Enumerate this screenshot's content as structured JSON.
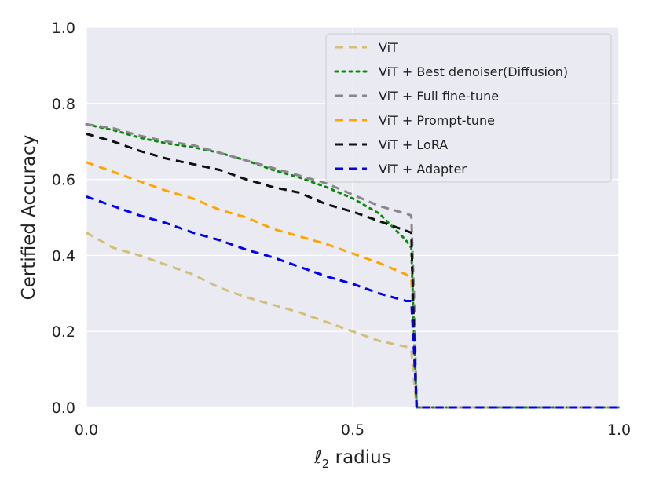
{
  "chart_data": {
    "type": "line",
    "title": "",
    "xlabel_prefix": "ℓ",
    "xlabel_sub": "2",
    "xlabel_suffix": " radius",
    "ylabel": "Certified Accuracy",
    "xlim": [
      0.0,
      1.0
    ],
    "ylim": [
      0.0,
      1.0
    ],
    "xticks": [
      0.0,
      0.5,
      1.0
    ],
    "xtick_labels": [
      "0.0",
      "0.5",
      "1.0"
    ],
    "yticks": [
      0.0,
      0.2,
      0.4,
      0.6,
      0.8,
      1.0
    ],
    "ytick_labels": [
      "0.0",
      "0.2",
      "0.4",
      "0.6",
      "0.8",
      "1.0"
    ],
    "grid": true,
    "legend_position": "top-right",
    "series": [
      {
        "name": "ViT",
        "color": "#d4bf7a",
        "dash": "dashed",
        "x": [
          0.0,
          0.05,
          0.1,
          0.15,
          0.2,
          0.25,
          0.3,
          0.35,
          0.4,
          0.45,
          0.5,
          0.55,
          0.6,
          0.61,
          0.615,
          0.62,
          0.63,
          0.7,
          0.8,
          0.9,
          1.0
        ],
        "y": [
          0.46,
          0.42,
          0.4,
          0.375,
          0.35,
          0.315,
          0.29,
          0.27,
          0.25,
          0.225,
          0.2,
          0.175,
          0.16,
          0.15,
          0.07,
          0.0,
          0.0,
          0.0,
          0.0,
          0.0,
          0.0
        ]
      },
      {
        "name": "ViT + Best denoiser(Diffusion)",
        "color": "#0a8a0a",
        "dash": "dotted",
        "x": [
          0.0,
          0.05,
          0.1,
          0.15,
          0.2,
          0.25,
          0.3,
          0.35,
          0.4,
          0.45,
          0.5,
          0.55,
          0.6,
          0.61,
          0.615,
          0.62,
          0.63,
          0.7,
          0.8,
          0.9,
          1.0
        ],
        "y": [
          0.745,
          0.73,
          0.71,
          0.695,
          0.685,
          0.67,
          0.65,
          0.625,
          0.605,
          0.58,
          0.55,
          0.51,
          0.44,
          0.42,
          0.2,
          0.0,
          0.0,
          0.0,
          0.0,
          0.0,
          0.0
        ]
      },
      {
        "name": "ViT + Full fine-tune",
        "color": "#888888",
        "dash": "dashed",
        "x": [
          0.0,
          0.05,
          0.1,
          0.15,
          0.2,
          0.25,
          0.3,
          0.35,
          0.4,
          0.45,
          0.5,
          0.55,
          0.6,
          0.61,
          0.615,
          0.62,
          0.63,
          0.7,
          0.8,
          0.9,
          1.0
        ],
        "y": [
          0.745,
          0.735,
          0.715,
          0.7,
          0.69,
          0.67,
          0.65,
          0.63,
          0.61,
          0.59,
          0.56,
          0.53,
          0.51,
          0.505,
          0.3,
          0.0,
          0.0,
          0.0,
          0.0,
          0.0,
          0.0
        ]
      },
      {
        "name": "ViT + Prompt-tune",
        "color": "#ffa500",
        "dash": "dashed",
        "x": [
          0.0,
          0.05,
          0.1,
          0.15,
          0.2,
          0.25,
          0.3,
          0.35,
          0.4,
          0.45,
          0.5,
          0.55,
          0.6,
          0.61,
          0.615,
          0.62,
          0.63,
          0.7,
          0.8,
          0.9,
          1.0
        ],
        "y": [
          0.645,
          0.62,
          0.595,
          0.57,
          0.55,
          0.52,
          0.5,
          0.47,
          0.45,
          0.43,
          0.405,
          0.38,
          0.35,
          0.34,
          0.18,
          0.0,
          0.0,
          0.0,
          0.0,
          0.0,
          0.0
        ]
      },
      {
        "name": "ViT + LoRA",
        "color": "#111111",
        "dash": "dashed",
        "x": [
          0.0,
          0.05,
          0.1,
          0.15,
          0.2,
          0.25,
          0.3,
          0.35,
          0.4,
          0.45,
          0.5,
          0.55,
          0.6,
          0.61,
          0.615,
          0.62,
          0.63,
          0.7,
          0.8,
          0.9,
          1.0
        ],
        "y": [
          0.72,
          0.7,
          0.675,
          0.655,
          0.64,
          0.625,
          0.6,
          0.58,
          0.565,
          0.535,
          0.515,
          0.49,
          0.465,
          0.46,
          0.2,
          0.0,
          0.0,
          0.0,
          0.0,
          0.0,
          0.0
        ]
      },
      {
        "name": "ViT + Adapter",
        "color": "#0000ee",
        "dash": "dashed",
        "x": [
          0.0,
          0.05,
          0.1,
          0.15,
          0.2,
          0.25,
          0.3,
          0.35,
          0.4,
          0.45,
          0.5,
          0.55,
          0.6,
          0.61,
          0.615,
          0.62,
          0.63,
          0.7,
          0.8,
          0.9,
          1.0
        ],
        "y": [
          0.555,
          0.53,
          0.505,
          0.485,
          0.46,
          0.44,
          0.415,
          0.395,
          0.37,
          0.345,
          0.325,
          0.3,
          0.28,
          0.28,
          0.15,
          0.0,
          0.0,
          0.0,
          0.0,
          0.0,
          0.0
        ]
      }
    ]
  }
}
